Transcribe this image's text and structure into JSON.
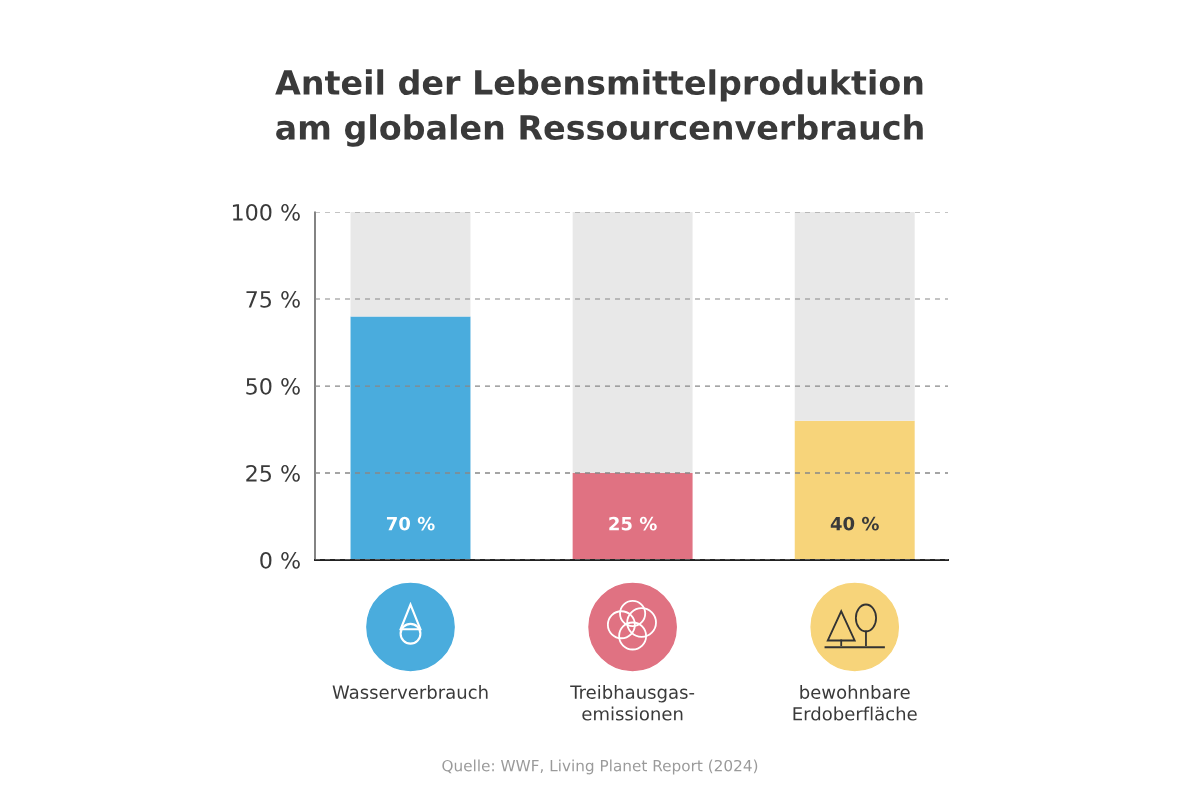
{
  "chart_data": {
    "type": "bar",
    "title": "Anteil der Lebensmittelproduktion\nam globalen Ressourcenverbrauch",
    "categories": [
      "Wasserverbrauch",
      "Treibhausgas-\nemissionen",
      "bewohnbare\nErdoberfläche"
    ],
    "stacked": true,
    "series": [
      {
        "colors": [
          "#4aacdd",
          "#e07282",
          "#f7d47a"
        ],
        "values": [
          70,
          25,
          40
        ],
        "value_labels": [
          "70 %",
          "25 %",
          "40 %"
        ]
      },
      {
        "color": "#e8e8e8",
        "values": [
          30,
          75,
          60
        ]
      }
    ],
    "ylim": [
      0,
      100
    ],
    "yticks": [
      {
        "value": 0,
        "label": "0 %"
      },
      {
        "value": 25,
        "label": "25 %"
      },
      {
        "value": 50,
        "label": "50 %"
      },
      {
        "value": 75,
        "label": "75 %"
      },
      {
        "value": 100,
        "label": "100 %"
      }
    ],
    "grid": "y",
    "line_style": "dashed",
    "annotations": [
      "Quelle: WWF, Living Planet Report (2024)"
    ]
  }
}
